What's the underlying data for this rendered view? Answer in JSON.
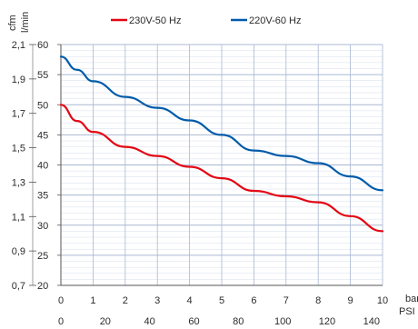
{
  "chart_data": {
    "type": "line",
    "title": "",
    "legend": {
      "placement": "top",
      "entries": [
        "230V-50 Hz",
        "220V-60 Hz"
      ]
    },
    "axes": {
      "y_left_outer": {
        "unit_top": "cfm",
        "unit_bottom": "l/min",
        "range": [
          0.7,
          2.1
        ],
        "ticks": [
          "0,7",
          "0,9",
          "1,1",
          "1,3",
          "1,5",
          "1,7",
          "1,9",
          "2,1"
        ]
      },
      "y_left_inner": {
        "range": [
          20,
          60
        ],
        "ticks": [
          "20",
          "25",
          "30",
          "35",
          "40",
          "45",
          "50",
          "55",
          "60"
        ]
      },
      "x_primary": {
        "label": "bar",
        "range": [
          0,
          10
        ],
        "ticks": [
          "0",
          "1",
          "2",
          "3",
          "4",
          "5",
          "6",
          "7",
          "8",
          "9",
          "10"
        ]
      },
      "x_secondary": {
        "label": "PSI",
        "range": [
          0,
          145
        ],
        "ticks": [
          "0",
          "20",
          "40",
          "60",
          "80",
          "100",
          "120",
          "140"
        ]
      }
    },
    "grid": {
      "vertical": true,
      "horizontal": true,
      "minor_horizontal": true
    },
    "series": [
      {
        "name": "230V-50 Hz",
        "color": "#e30613",
        "points": [
          [
            0,
            50
          ],
          [
            0.5,
            47.3
          ],
          [
            1,
            45.5
          ],
          [
            2,
            43
          ],
          [
            3,
            41.5
          ],
          [
            4,
            39.7
          ],
          [
            5,
            37.8
          ],
          [
            6,
            35.7
          ],
          [
            7,
            34.8
          ],
          [
            8,
            33.8
          ],
          [
            9,
            31.5
          ],
          [
            10,
            29
          ]
        ]
      },
      {
        "name": "220V-60 Hz",
        "color": "#005baa",
        "points": [
          [
            0,
            58
          ],
          [
            0.5,
            55.8
          ],
          [
            1,
            53.9
          ],
          [
            2,
            51.3
          ],
          [
            3,
            49.5
          ],
          [
            4,
            47.4
          ],
          [
            5,
            45
          ],
          [
            6,
            42.4
          ],
          [
            7,
            41.5
          ],
          [
            8,
            40.3
          ],
          [
            9,
            38.1
          ],
          [
            10,
            35.8
          ]
        ]
      }
    ]
  }
}
